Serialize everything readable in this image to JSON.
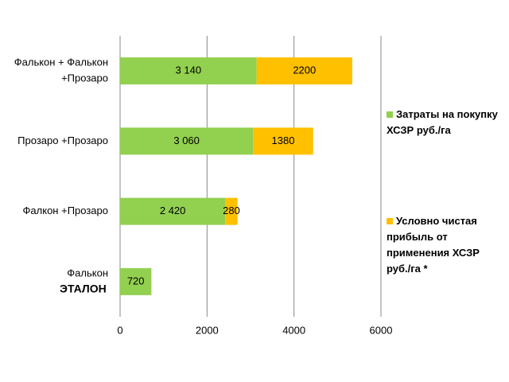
{
  "chart_data": {
    "type": "stacked_bar_horizontal",
    "categories": [
      [
        "Фалькон + Фалькон",
        "+Прозаро"
      ],
      [
        "Прозаро +Прозаро"
      ],
      [
        "Фалкон +Прозаро"
      ],
      [
        "Фалькон",
        "ЭТАЛОН"
      ]
    ],
    "series": [
      {
        "name": "Затраты на покупку ХСЗР руб./га",
        "color": "#92d050",
        "values": [
          3140,
          3060,
          2420,
          720
        ],
        "value_labels": [
          "3 140",
          "3 060",
          "2 420",
          "720"
        ]
      },
      {
        "name": "Условно чистая прибыль от применения ХСЗР руб./га *",
        "color": "#ffc000",
        "values": [
          2200,
          1380,
          280,
          null
        ],
        "value_labels": [
          "2200",
          "1380",
          "280",
          null
        ]
      }
    ],
    "xlim": [
      0,
      6000
    ],
    "xticks": [
      0,
      2000,
      4000,
      6000
    ],
    "grid": true,
    "legend": "right"
  }
}
